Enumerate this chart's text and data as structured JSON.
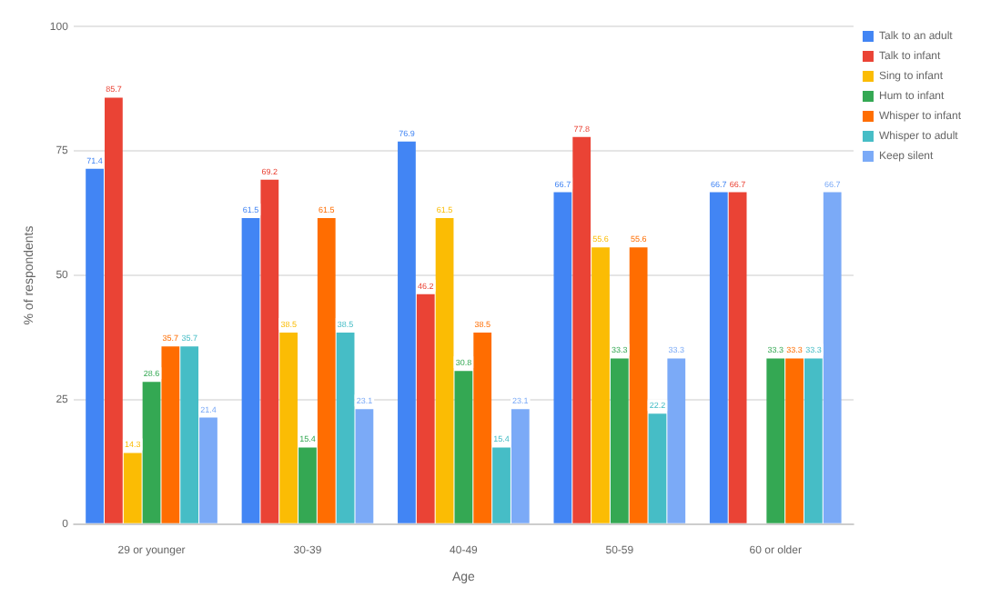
{
  "chart_data": {
    "type": "bar",
    "xlabel": "Age",
    "ylabel": "% of respondents",
    "categories": [
      "29 or younger",
      "30-39",
      "40-49",
      "50-59",
      "60 or older"
    ],
    "series": [
      {
        "name": "Talk to an adult",
        "color": "#4285f4",
        "values": [
          71.4,
          61.5,
          76.9,
          66.7,
          66.7
        ]
      },
      {
        "name": "Talk to infant",
        "color": "#ea4335",
        "values": [
          85.7,
          69.2,
          46.2,
          77.8,
          66.7
        ]
      },
      {
        "name": "Sing to infant",
        "color": "#fbbc04",
        "values": [
          14.3,
          38.5,
          61.5,
          55.6,
          null
        ]
      },
      {
        "name": "Hum to infant",
        "color": "#34a853",
        "values": [
          28.6,
          15.4,
          30.8,
          33.3,
          33.3
        ]
      },
      {
        "name": "Whisper to infant",
        "color": "#ff6d01",
        "values": [
          35.7,
          61.5,
          38.5,
          55.6,
          33.3
        ]
      },
      {
        "name": "Whisper to adult",
        "color": "#46bdc6",
        "values": [
          35.7,
          38.5,
          15.4,
          22.2,
          33.3
        ]
      },
      {
        "name": "Keep silent",
        "color": "#7baaf7",
        "values": [
          21.4,
          23.1,
          23.1,
          33.3,
          66.7
        ]
      }
    ],
    "ylim": [
      0,
      100
    ],
    "yticks": [
      0,
      25,
      50,
      75,
      100
    ],
    "grid": "y",
    "legend": "top right",
    "data_labels": true
  }
}
